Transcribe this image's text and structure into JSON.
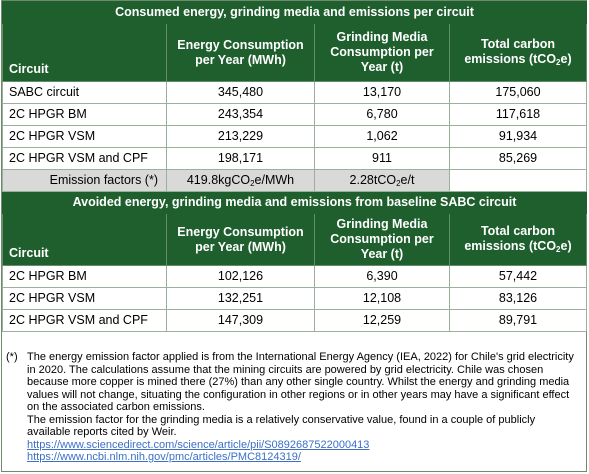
{
  "section1": {
    "title": "Consumed energy, grinding media and emissions per circuit",
    "headers": {
      "circuit": "Circuit",
      "energy": "Energy Consumption per Year (MWh)",
      "media": "Grinding Media Consumption per Year (t)",
      "carbon_pre": "Total carbon emissions (tCO",
      "carbon_sub": "2",
      "carbon_post": "e)"
    },
    "rows": [
      {
        "circuit": "SABC circuit",
        "energy": "345,480",
        "media": "13,170",
        "carbon": "175,060"
      },
      {
        "circuit": "2C HPGR BM",
        "energy": "243,354",
        "media": "6,780",
        "carbon": "117,618"
      },
      {
        "circuit": "2C HPGR VSM",
        "energy": "213,229",
        "media": "1,062",
        "carbon": "91,934"
      },
      {
        "circuit": "2C HPGR VSM and CPF",
        "energy": "198,171",
        "media": "911",
        "carbon": "85,269"
      }
    ],
    "emission_factors": {
      "label": "Emission factors (*)",
      "energy_pre": "419.8kgCO",
      "energy_sub": "2",
      "energy_post": "e/MWh",
      "media_pre": "2.28tCO",
      "media_sub": "2",
      "media_post": "e/t"
    }
  },
  "section2": {
    "title": "Avoided energy, grinding media and emissions from baseline SABC circuit",
    "headers": {
      "circuit": "Circuit",
      "energy": "Energy Consumption per Year (MWh)",
      "media": "Grinding Media Consumption per Year (t)",
      "carbon_pre": "Total carbon emissions (tCO",
      "carbon_sub": "2",
      "carbon_post": "e)"
    },
    "rows": [
      {
        "circuit": "2C HPGR BM",
        "energy": "102,126",
        "media": "6,390",
        "carbon": "57,442"
      },
      {
        "circuit": "2C HPGR VSM",
        "energy": "132,251",
        "media": "12,108",
        "carbon": "83,126"
      },
      {
        "circuit": "2C HPGR VSM and CPF",
        "energy": "147,309",
        "media": "12,259",
        "carbon": "89,791"
      }
    ]
  },
  "notes": {
    "marker": "(*)",
    "paragraph1": "The energy emission factor applied is from the International Energy Agency (IEA, 2022) for Chile's grid electricity in 2020. The calculations assume that the mining circuits are powered by grid electricity. Chile was chosen because more copper is mined there (27%) than any other single country. Whilst the energy and grinding media values will not change, situating the configuration in other regions or in other years may have a significant effect on the associated carbon emissions.",
    "paragraph2": "The emission factor for the grinding media is a relatively conservative value, found in a couple of publicly available reports cited by Weir.",
    "link1": "https://www.sciencedirect.com/science/article/pii/S0892687522000413",
    "link2": "https://www.ncbi.nlm.nih.gov/pmc/articles/PMC8124319/"
  },
  "colors": {
    "header_green": "#1f5f2e",
    "factor_gray": "#d9d9d9",
    "link_blue": "#3b6fc8"
  }
}
